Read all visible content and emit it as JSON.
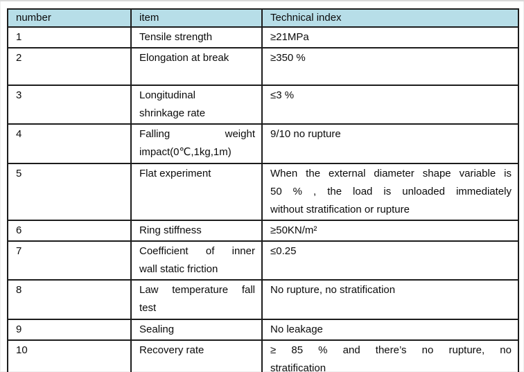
{
  "table": {
    "header_bg": "#b7dee8",
    "border_color": "#1c1c1c",
    "headers": [
      "number",
      "item",
      "Technical index"
    ],
    "rows": [
      {
        "number": "1",
        "item": "Tensile strength",
        "index": "≥21MPa"
      },
      {
        "number": "2",
        "item": "Elongation at break",
        "index": "≥350 %"
      },
      {
        "number": "3",
        "item": [
          "Longitudinal",
          "shrinkage rate"
        ],
        "index": "≤3 %"
      },
      {
        "number": "4",
        "item": [
          "Falling weight",
          "impact(0℃,1kg,1m)"
        ],
        "item_justified": true,
        "index": "9/10 no rupture"
      },
      {
        "number": "5",
        "item": "Flat experiment",
        "index": [
          "When the external diameter shape variable is",
          "50 % , the load is unloaded immediately",
          "without stratification or rupture"
        ],
        "index_justified": true
      },
      {
        "number": "6",
        "item": "Ring stiffness",
        "index": "≥50KN/m²"
      },
      {
        "number": "7",
        "item": [
          "Coefficient of inner",
          "wall static friction"
        ],
        "item_justified": true,
        "index": "≤0.25"
      },
      {
        "number": "8",
        "item": [
          "Law temperature fall",
          "test"
        ],
        "item_justified": true,
        "index": "No rupture, no stratification"
      },
      {
        "number": "9",
        "item": "Sealing",
        "index": "No leakage"
      },
      {
        "number": "10",
        "item": "Recovery rate",
        "index": [
          "≥ 85 % and there’s no rupture, no",
          "stratification"
        ],
        "index_justified": true
      }
    ]
  }
}
